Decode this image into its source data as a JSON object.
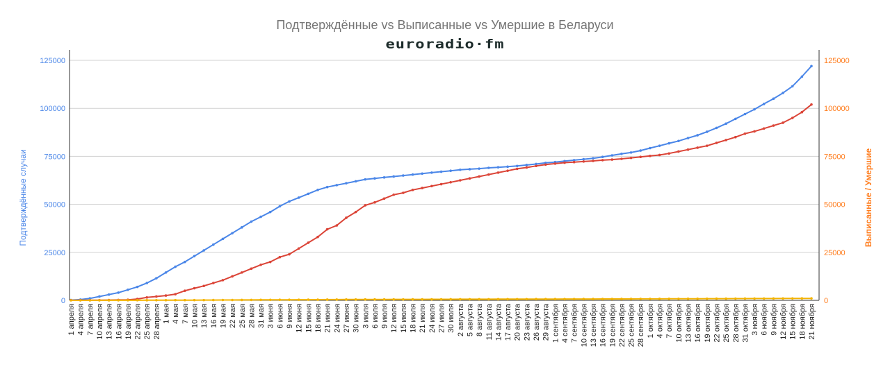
{
  "chart_data": {
    "type": "line",
    "title": "Подтверждённые vs Выписанные vs Умершие в Беларуси",
    "logo": "euroradio·fm",
    "ylabel_left": "Подтверждённые случаи",
    "ylabel_right": "Выписанные / Умершие",
    "ylim": [
      0,
      125000
    ],
    "yticks": [
      "0",
      "25000",
      "50000",
      "75000",
      "100000",
      "125000"
    ],
    "grid": true,
    "legend": "none",
    "colors": {
      "confirmed": "#4a86e8",
      "recovered": "#db4437",
      "deaths": "#f4b400",
      "left_axis": "#4a86e8",
      "right_axis": "#ff7d1e",
      "title": "#757575"
    },
    "categories": [
      "1 апреля",
      "4 апреля",
      "7 апреля",
      "10 апреля",
      "13 апреля",
      "16 апреля",
      "19 апреля",
      "22 апреля",
      "25 апреля",
      "28 апреля",
      "1 мая",
      "4 мая",
      "7 мая",
      "10 мая",
      "13 мая",
      "16 мая",
      "19 мая",
      "22 мая",
      "25 мая",
      "28 мая",
      "31 мая",
      "3 июня",
      "6 июня",
      "9 июня",
      "12 июня",
      "15 июня",
      "18 июня",
      "21 июня",
      "24 июня",
      "27 июня",
      "30 июня",
      "3 июля",
      "6 июля",
      "9 июля",
      "12 июля",
      "15 июля",
      "18 июля",
      "21 июля",
      "24 июля",
      "27 июля",
      "30 июля",
      "2 августа",
      "5 августа",
      "8 августа",
      "11 августа",
      "14 августа",
      "17 августа",
      "20 августа",
      "23 августа",
      "26 августа",
      "29 августа",
      "1 сентября",
      "4 сентября",
      "7 сентября",
      "10 сентября",
      "13 сентября",
      "16 сентября",
      "19 сентября",
      "22 сентября",
      "25 сентября",
      "28 сентября",
      "1 октября",
      "4 октября",
      "7 октября",
      "10 октября",
      "13 октября",
      "16 октября",
      "19 октября",
      "22 октября",
      "25 октября",
      "28 октября",
      "31 октября",
      "3 ноября",
      "6 ноября",
      "9 ноября",
      "12 ноября",
      "15 ноября",
      "18 ноября",
      "21 ноября"
    ],
    "series": [
      {
        "key": "confirmed",
        "axis": "left",
        "values": [
          150,
          400,
          1000,
          2000,
          3000,
          4000,
          5500,
          7000,
          9000,
          11500,
          14500,
          17500,
          20000,
          23000,
          26000,
          29000,
          32000,
          35000,
          38000,
          41000,
          43500,
          46000,
          49000,
          51500,
          53500,
          55500,
          57500,
          59000,
          60000,
          61000,
          62000,
          63000,
          63500,
          64000,
          64500,
          65000,
          65500,
          66000,
          66500,
          67000,
          67500,
          68000,
          68300,
          68600,
          69000,
          69300,
          69600,
          70000,
          70500,
          71000,
          71600,
          72000,
          72500,
          73000,
          73500,
          74000,
          74700,
          75500,
          76300,
          77000,
          78000,
          79300,
          80500,
          81800,
          83000,
          84500,
          86000,
          87800,
          89800,
          92000,
          94500,
          97000,
          99500,
          102300,
          105000,
          108000,
          111500,
          116500,
          122000
        ]
      },
      {
        "key": "recovered",
        "axis": "right",
        "values": [
          50,
          60,
          80,
          100,
          150,
          200,
          300,
          700,
          1500,
          2000,
          2500,
          3200,
          5000,
          6300,
          7500,
          9000,
          10500,
          12500,
          14500,
          16500,
          18500,
          20000,
          22500,
          24000,
          27000,
          30000,
          33000,
          37000,
          39000,
          43000,
          46000,
          49500,
          51000,
          53000,
          55000,
          56000,
          57500,
          58500,
          59500,
          60500,
          61500,
          62500,
          63500,
          64500,
          65500,
          66500,
          67500,
          68500,
          69200,
          70000,
          70700,
          71200,
          71700,
          72000,
          72300,
          72600,
          73000,
          73300,
          73700,
          74200,
          74700,
          75200,
          75700,
          76500,
          77500,
          78500,
          79500,
          80500,
          82000,
          83500,
          85000,
          86800,
          88000,
          89500,
          91000,
          92500,
          95000,
          98000,
          102000
        ]
      },
      {
        "key": "deaths",
        "axis": "right",
        "values": [
          2,
          4,
          8,
          13,
          20,
          30,
          40,
          50,
          60,
          70,
          80,
          95,
          110,
          125,
          140,
          155,
          170,
          185,
          200,
          220,
          240,
          260,
          280,
          300,
          320,
          340,
          360,
          380,
          400,
          420,
          440,
          460,
          470,
          480,
          490,
          500,
          510,
          520,
          530,
          540,
          550,
          560,
          570,
          580,
          590,
          600,
          610,
          620,
          630,
          640,
          650,
          660,
          670,
          680,
          690,
          700,
          710,
          720,
          730,
          740,
          750,
          760,
          775,
          790,
          805,
          820,
          835,
          850,
          865,
          880,
          895,
          910,
          925,
          940,
          955,
          970,
          985,
          1000,
          1020
        ]
      }
    ]
  }
}
